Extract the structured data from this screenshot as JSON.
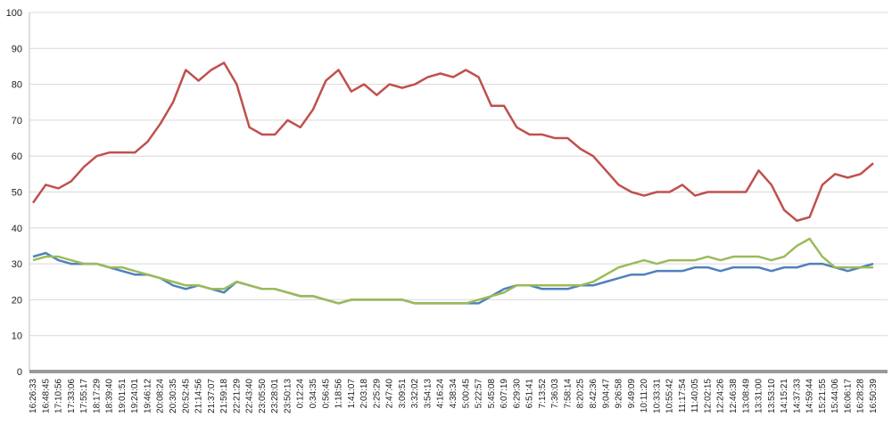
{
  "chart_data": {
    "type": "line",
    "categories": [
      "16:26:33",
      "16:48:45",
      "17:10:56",
      "17:33:06",
      "17:55:17",
      "18:17:29",
      "18:39:40",
      "19:01:51",
      "19:24:01",
      "19:46:12",
      "20:08:24",
      "20:30:35",
      "20:52:45",
      "21:14:56",
      "21:37:07",
      "21:59:18",
      "22:21:29",
      "22:43:40",
      "23:05:50",
      "23:28:01",
      "23:50:13",
      "0:12:24",
      "0:34:35",
      "0:56:45",
      "1:18:56",
      "1:41:07",
      "2:03:18",
      "2:25:29",
      "2:47:40",
      "3:09:51",
      "3:32:02",
      "3:54:13",
      "4:16:24",
      "4:38:34",
      "5:00:45",
      "5:22:57",
      "5:45:08",
      "6:07:19",
      "6:29:30",
      "6:51:41",
      "7:13:52",
      "7:36:03",
      "7:58:14",
      "8:20:25",
      "8:42:36",
      "9:04:47",
      "9:26:58",
      "9:49:09",
      "10:11:20",
      "10:33:31",
      "10:55:42",
      "11:17:54",
      "11:40:05",
      "12:02:15",
      "12:24:26",
      "12:46:38",
      "13:08:49",
      "13:31:00",
      "13:53:10",
      "14:15:21",
      "14:37:33",
      "14:59:44",
      "15:21:55",
      "15:44:06",
      "16:06:17",
      "16:28:28",
      "16:50:39"
    ],
    "series": [
      {
        "color": "#c0504d",
        "values": [
          47,
          52,
          51,
          53,
          57,
          60,
          61,
          61,
          61,
          64,
          69,
          75,
          84,
          81,
          84,
          86,
          80,
          68,
          66,
          66,
          70,
          68,
          73,
          81,
          84,
          78,
          80,
          77,
          80,
          79,
          80,
          82,
          83,
          82,
          84,
          82,
          74,
          74,
          68,
          66,
          66,
          65,
          65,
          62,
          60,
          56,
          52,
          50,
          49,
          50,
          50,
          52,
          49,
          50,
          50,
          50,
          50,
          56,
          52,
          45,
          42,
          43,
          52,
          55,
          54,
          55,
          58
        ]
      },
      {
        "color": "#4f81bd",
        "values": [
          32,
          33,
          31,
          30,
          30,
          30,
          29,
          28,
          27,
          27,
          26,
          24,
          23,
          24,
          23,
          22,
          25,
          24,
          23,
          23,
          22,
          21,
          21,
          20,
          19,
          20,
          20,
          20,
          20,
          20,
          19,
          19,
          19,
          19,
          19,
          19,
          21,
          23,
          24,
          24,
          23,
          23,
          23,
          24,
          24,
          25,
          26,
          27,
          27,
          28,
          28,
          28,
          29,
          29,
          28,
          29,
          29,
          29,
          28,
          29,
          29,
          30,
          30,
          29,
          28,
          29,
          30
        ]
      },
      {
        "color": "#9bbb59",
        "values": [
          31,
          32,
          32,
          31,
          30,
          30,
          29,
          29,
          28,
          27,
          26,
          25,
          24,
          24,
          23,
          23,
          25,
          24,
          23,
          23,
          22,
          21,
          21,
          20,
          19,
          20,
          20,
          20,
          20,
          20,
          19,
          19,
          19,
          19,
          19,
          20,
          21,
          22,
          24,
          24,
          24,
          24,
          24,
          24,
          25,
          27,
          29,
          30,
          31,
          30,
          31,
          31,
          31,
          32,
          31,
          32,
          32,
          32,
          31,
          32,
          35,
          37,
          32,
          29,
          29,
          29,
          29
        ]
      }
    ],
    "ylim": [
      0,
      100
    ],
    "yticks": [
      0,
      10,
      20,
      30,
      40,
      50,
      60,
      70,
      80,
      90,
      100
    ],
    "grid": true
  }
}
